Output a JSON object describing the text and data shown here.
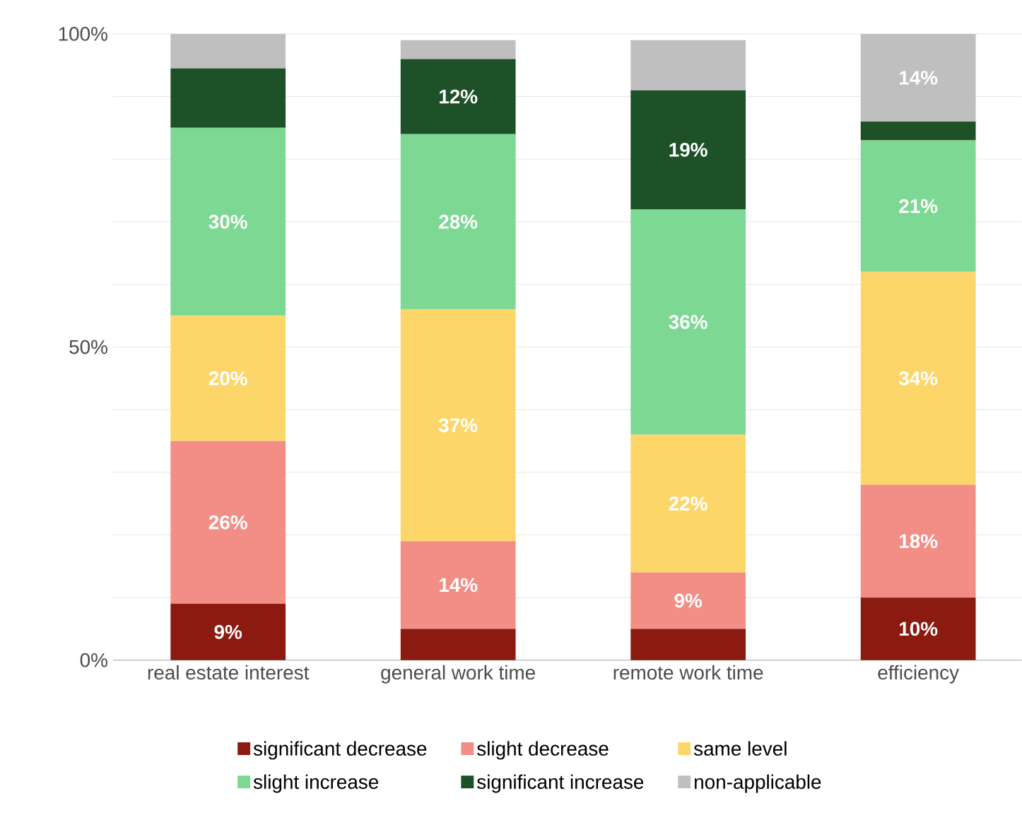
{
  "chart_data": {
    "type": "bar",
    "stacked": true,
    "categories": [
      "real estate interest",
      "general work time",
      "remote work time",
      "efficiency"
    ],
    "ylim": [
      0,
      100
    ],
    "yticks": [
      {
        "value": 0,
        "label": "0%"
      },
      {
        "value": 10,
        "label": null
      },
      {
        "value": 20,
        "label": null
      },
      {
        "value": 30,
        "label": null
      },
      {
        "value": 40,
        "label": null
      },
      {
        "value": 50,
        "label": "50%"
      },
      {
        "value": 60,
        "label": null
      },
      {
        "value": 70,
        "label": null
      },
      {
        "value": 80,
        "label": null
      },
      {
        "value": 90,
        "label": null
      },
      {
        "value": 100,
        "label": "100%"
      }
    ],
    "grid": "y",
    "legend": "bottom",
    "series": [
      {
        "name": "significant decrease",
        "color": "#8b1a10",
        "values": [
          9,
          5,
          5,
          10
        ],
        "value_labels": [
          "9%",
          null,
          null,
          "10%"
        ]
      },
      {
        "name": "slight decrease",
        "color": "#f28e86",
        "values": [
          26,
          14,
          9,
          18
        ],
        "value_labels": [
          "26%",
          "14%",
          "9%",
          "18%"
        ]
      },
      {
        "name": "same level",
        "color": "#fdd66a",
        "values": [
          20,
          37,
          22,
          34
        ],
        "value_labels": [
          "20%",
          "37%",
          "22%",
          "34%"
        ]
      },
      {
        "name": "slight increase",
        "color": "#7dd893",
        "values": [
          30,
          28,
          36,
          21
        ],
        "value_labels": [
          "30%",
          "28%",
          "36%",
          "21%"
        ]
      },
      {
        "name": "significant increase",
        "color": "#1e5128",
        "values": [
          9.5,
          12,
          19,
          3
        ],
        "value_labels": [
          null,
          "12%",
          "19%",
          null
        ]
      },
      {
        "name": "non-applicable",
        "color": "#bfbfbf",
        "values": [
          5.5,
          3,
          8,
          14
        ],
        "value_labels": [
          null,
          null,
          null,
          "14%"
        ]
      }
    ]
  }
}
